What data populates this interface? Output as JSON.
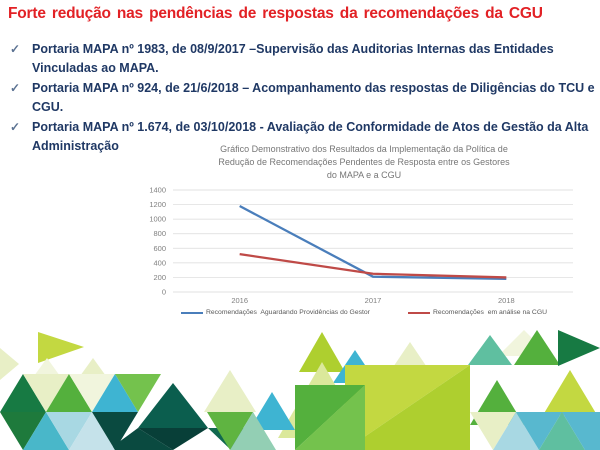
{
  "slide": {
    "title": "Forte redução nas pendências de respostas da  recomendações da CGU",
    "title_color": "#e22125",
    "check_glyph": "✓",
    "bullets": [
      {
        "text": "Portaria MAPA nº 1983, de 08/9/2017 –Supervisão das Auditorias Internas das Entidades Vinculadas ao MAPA."
      },
      {
        "text": "Portaria MAPA nº 924, de 21/6/2018 – Acompanhamento das respostas de Diligências do TCU e CGU."
      },
      {
        "text": "Portaria MAPA nº 1.674, de 03/10/2018 -  Avaliação de Conformidade de Atos de Gestão da Alta Administração"
      }
    ],
    "bullet_color": "#1f3864"
  },
  "chart_data": {
    "type": "line",
    "title": "Gráfico Demonstrativo dos Resultados da Implementação da Política de\nRedução de Recomendações Pendentes de Resposta entre os Gestores\ndo MAPA e a CGU",
    "categories": [
      "2016",
      "2017",
      "2018"
    ],
    "series": [
      {
        "name": "Recomendações  Aguardando Providências do Gestor",
        "color": "#4a7ebb",
        "values": [
          1180,
          210,
          180
        ]
      },
      {
        "name": "Recomendações  em análise na CGU",
        "color": "#bf4a47",
        "values": [
          520,
          250,
          200
        ]
      }
    ],
    "ylim": [
      0,
      1400
    ],
    "ytick_step": 200,
    "grid": true,
    "grid_color": "#d9d9d9",
    "axis_label_color": "#7f7f7f",
    "legend_position": "bottom"
  },
  "decor": {
    "palette": {
      "lime": "#c3d841",
      "lime2": "#aecf2f",
      "paleLime": "#e8efc6",
      "paleLime2": "#f1f5dd",
      "paleLime3": "#dbe89b",
      "green": "#54b03d",
      "green2": "#74c24d",
      "grass": "#5fb441",
      "darkGreen": "#177a43",
      "darkGreen2": "#1e7a3c",
      "darkTeal": "#0b5e4e",
      "darkTeal2": "#083f38",
      "darkTeal3": "#0a4a40",
      "teal": "#11684f",
      "cyan": "#3eb4d2",
      "cyan2": "#49b7c9",
      "cyan3": "#58b8cf",
      "lightBlue": "#a8d8e3",
      "paleBlue": "#c5e2ea",
      "seaGreen": "#5fbfa0",
      "paleSea": "#93cfb4"
    }
  }
}
